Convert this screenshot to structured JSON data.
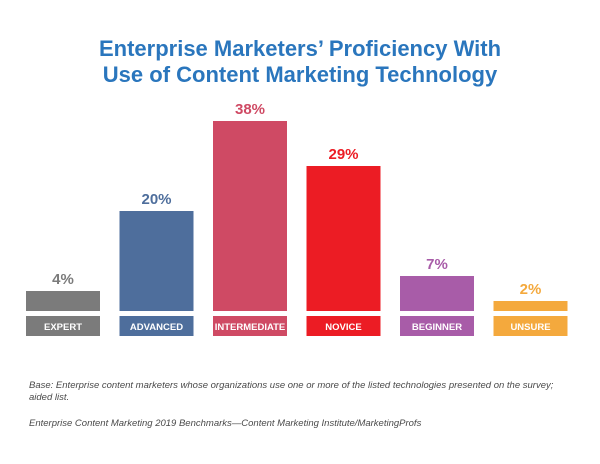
{
  "title_line1": "Enterprise Marketers’ Proficiency With",
  "title_line2": "Use of Content Marketing Technology",
  "footnotes": {
    "base": "Base: Enterprise content marketers whose organizations use one or more of the listed technologies presented on the survey; aided list.",
    "source": "Enterprise Content Marketing 2019 Benchmarks—Content Marketing Institute/MarketingProfs"
  },
  "colors": {
    "title": "#2a76bd",
    "footnote": "#4a4a4a",
    "label_text": "#ffffff"
  },
  "chart_data": {
    "type": "bar",
    "title": "Enterprise Marketers’ Proficiency With Use of Content Marketing Technology",
    "categories": [
      "EXPERT",
      "ADVANCED",
      "INTERMEDIATE",
      "NOVICE",
      "BEGINNER",
      "UNSURE"
    ],
    "values": [
      4,
      20,
      38,
      29,
      7,
      2
    ],
    "value_labels": [
      "4%",
      "20%",
      "38%",
      "29%",
      "7%",
      "2%"
    ],
    "unit": "%",
    "colors": [
      "#7b7b7b",
      "#4e6e9c",
      "#cf4a64",
      "#ec1c24",
      "#a85ca8",
      "#f4a93d"
    ],
    "ylim": [
      0,
      38
    ],
    "grid": false,
    "legend": "none"
  }
}
